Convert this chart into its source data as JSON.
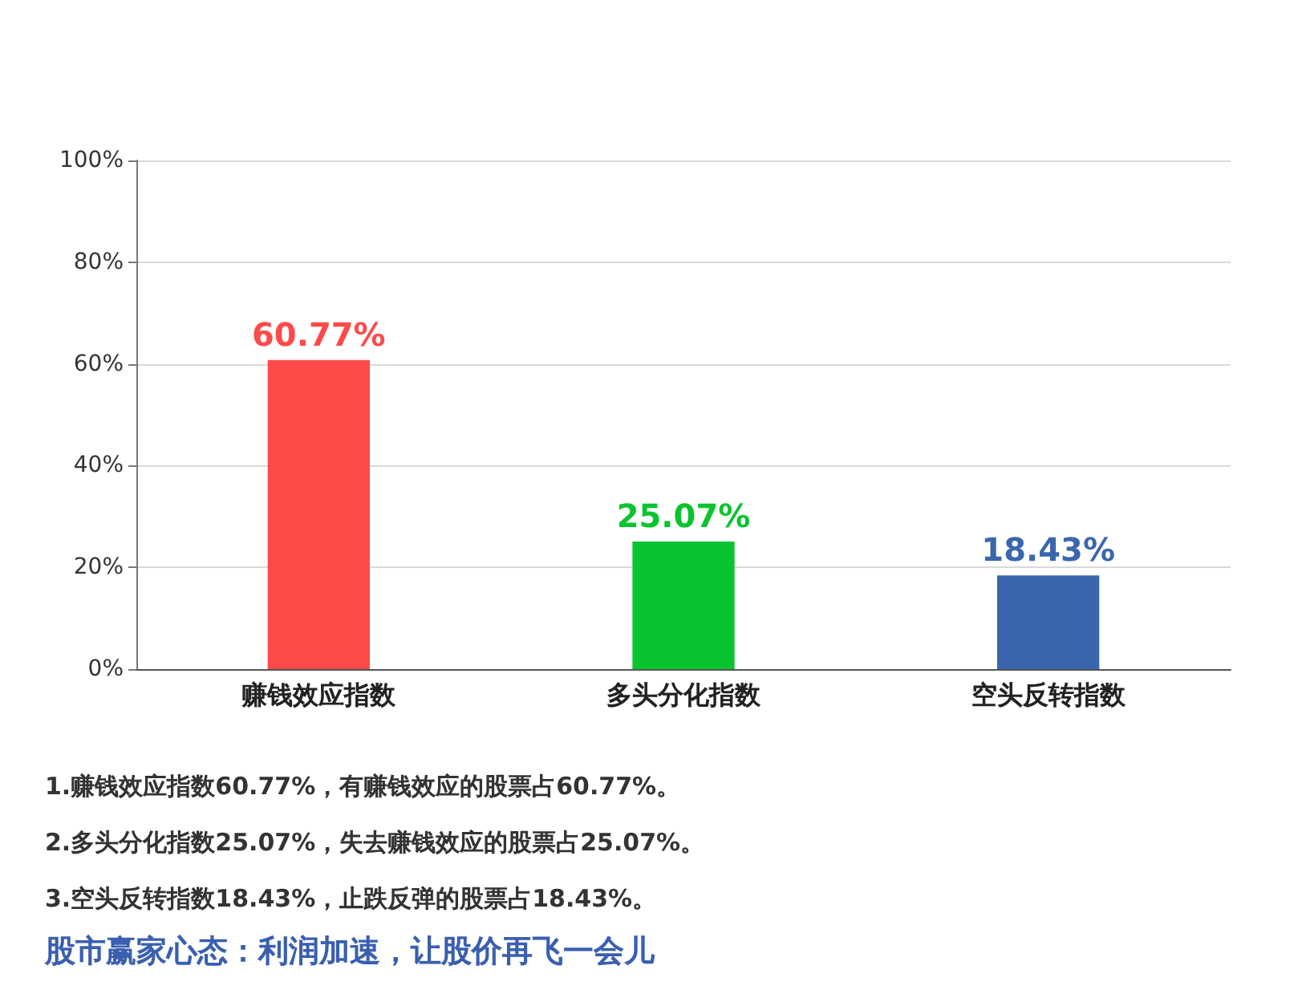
{
  "chart_data": {
    "type": "bar",
    "categories": [
      "赚钱效应指数",
      "多头分化指数",
      "空头反转指数"
    ],
    "values": [
      60.77,
      25.07,
      18.43
    ],
    "colors": [
      "#ff4a4a",
      "#0ac42f",
      "#3a66ad"
    ],
    "value_labels": [
      "60.77%",
      "25.07%",
      "18.43%"
    ],
    "ylim": [
      0,
      100
    ],
    "yticks": [
      {
        "value": 0,
        "label": "0%"
      },
      {
        "value": 20,
        "label": "20%"
      },
      {
        "value": 40,
        "label": "40%"
      },
      {
        "value": 60,
        "label": "60%"
      },
      {
        "value": 80,
        "label": "80%"
      },
      {
        "value": 100,
        "label": "100%"
      }
    ],
    "grid": "y",
    "annotations": [
      "1.赚钱效应指数60.77%，有赚钱效应的股票占60.77%。",
      "2.多头分化指数25.07%，失去赚钱效应的股票占25.07%。",
      "3.空头反转指数18.43%，止跌反弹的股票占18.43%。",
      "股市赢家心态：利润加速，让股价再飞一会儿"
    ]
  }
}
